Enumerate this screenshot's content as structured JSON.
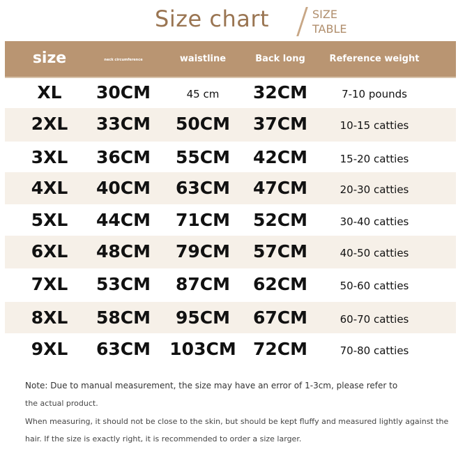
{
  "title": "Size chart",
  "subtitle": [
    "SIZE",
    "TABLE"
  ],
  "colors": {
    "header": "#b99572",
    "alt_row": "#f6f0e8",
    "title": "#9a7552"
  },
  "headers": [
    "size",
    "neck circumference",
    "waistline",
    "Back long",
    "Reference weight"
  ],
  "rows": [
    [
      "XL",
      "30CM",
      "45 cm",
      "32CM",
      "7-10 pounds"
    ],
    [
      "2XL",
      "33CM",
      "50CM",
      "37CM",
      "10-15 catties"
    ],
    [
      "3XL",
      "36CM",
      "55CM",
      "42CM",
      "15-20 catties"
    ],
    [
      "4XL",
      "40CM",
      "63CM",
      "47CM",
      "20-30 catties"
    ],
    [
      "5XL",
      "44CM",
      "71CM",
      "52CM",
      "30-40 catties"
    ],
    [
      "6XL",
      "48CM",
      "79CM",
      "57CM",
      "40-50 catties"
    ],
    [
      "7XL",
      "53CM",
      "87CM",
      "62CM",
      "50-60 catties"
    ],
    [
      "8XL",
      "58CM",
      "95CM",
      "67CM",
      "60-70 catties"
    ],
    [
      "9XL",
      "63CM",
      "103CM",
      "72CM",
      "70-80 catties"
    ]
  ],
  "notes": [
    "Note: Due to manual measurement, the size may have an error of 1-3cm, please refer to",
    "the actual product.",
    "When measuring, it should not be close to the skin, but should be kept fluffy and measured lightly against the",
    "hair. If the size is exactly right, it is recommended to order a size larger."
  ]
}
